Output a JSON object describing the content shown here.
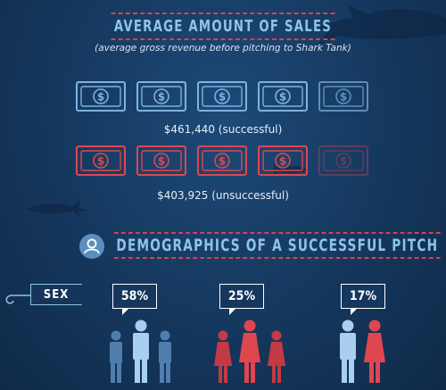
{
  "chart_data": [
    {
      "type": "bar",
      "title": "AVERAGE AMOUNT OF SALES",
      "subtitle": "(average gross revenue before pitching to Shark Tank)",
      "categories": [
        "successful",
        "unsuccessful"
      ],
      "values": [
        461440,
        403925
      ],
      "labels": [
        "$461,440 (successful)",
        "$403,925 (unsuccessful)"
      ],
      "bills_full": [
        4.5,
        4
      ]
    },
    {
      "type": "pie",
      "title": "DEMOGRAPHICS OF A SUCCESSFUL PITCH",
      "category_label": "SEX",
      "values": [
        58,
        25,
        17
      ],
      "labels": [
        "58%",
        "25%",
        "17%"
      ]
    }
  ],
  "colors": {
    "blue_accent": "#8fc3ea",
    "red_accent": "#d8434b",
    "bill_blue": "#7fb2e0",
    "bill_red": "#e0464f",
    "figure_male": "#6fa0cf",
    "figure_male_light": "#a8cff0",
    "figure_female": "#d8434b"
  },
  "icons": {
    "person": "person-icon",
    "dollar": "dollar-bill-icon",
    "hook": "fish-hook-icon",
    "shark": "shark-silhouette-icon"
  }
}
